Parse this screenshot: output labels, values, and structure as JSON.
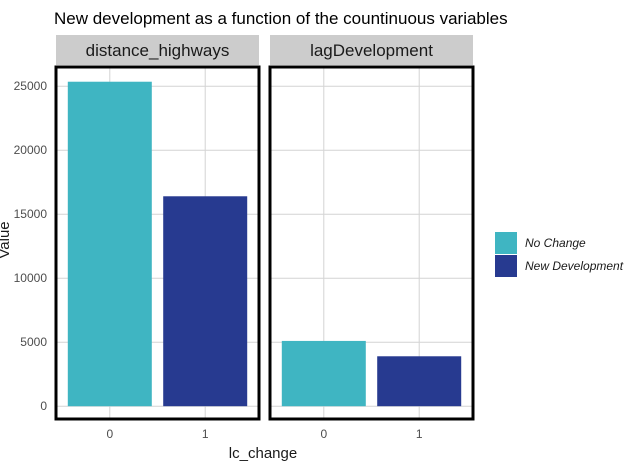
{
  "chart_data": {
    "type": "bar",
    "title": "New development as a function of the countinuous variables",
    "xlabel": "lc_change",
    "ylabel": "Value",
    "categories": [
      "0",
      "1"
    ],
    "ylim": [
      -1000,
      26500
    ],
    "yticks": [
      0,
      5000,
      10000,
      15000,
      20000,
      25000
    ],
    "yticklabels": [
      "0",
      "5000",
      "10000",
      "15000",
      "20000",
      "25000"
    ],
    "grid": true,
    "legend_position": "right",
    "facets": [
      {
        "label": "distance_highways",
        "values": [
          25350,
          16400
        ]
      },
      {
        "label": "lagDevelopment",
        "values": [
          5100,
          3900
        ]
      }
    ],
    "legend": [
      {
        "label": "No Change",
        "color": "#3fb5c2"
      },
      {
        "label": "New Development",
        "color": "#273a90"
      }
    ]
  }
}
